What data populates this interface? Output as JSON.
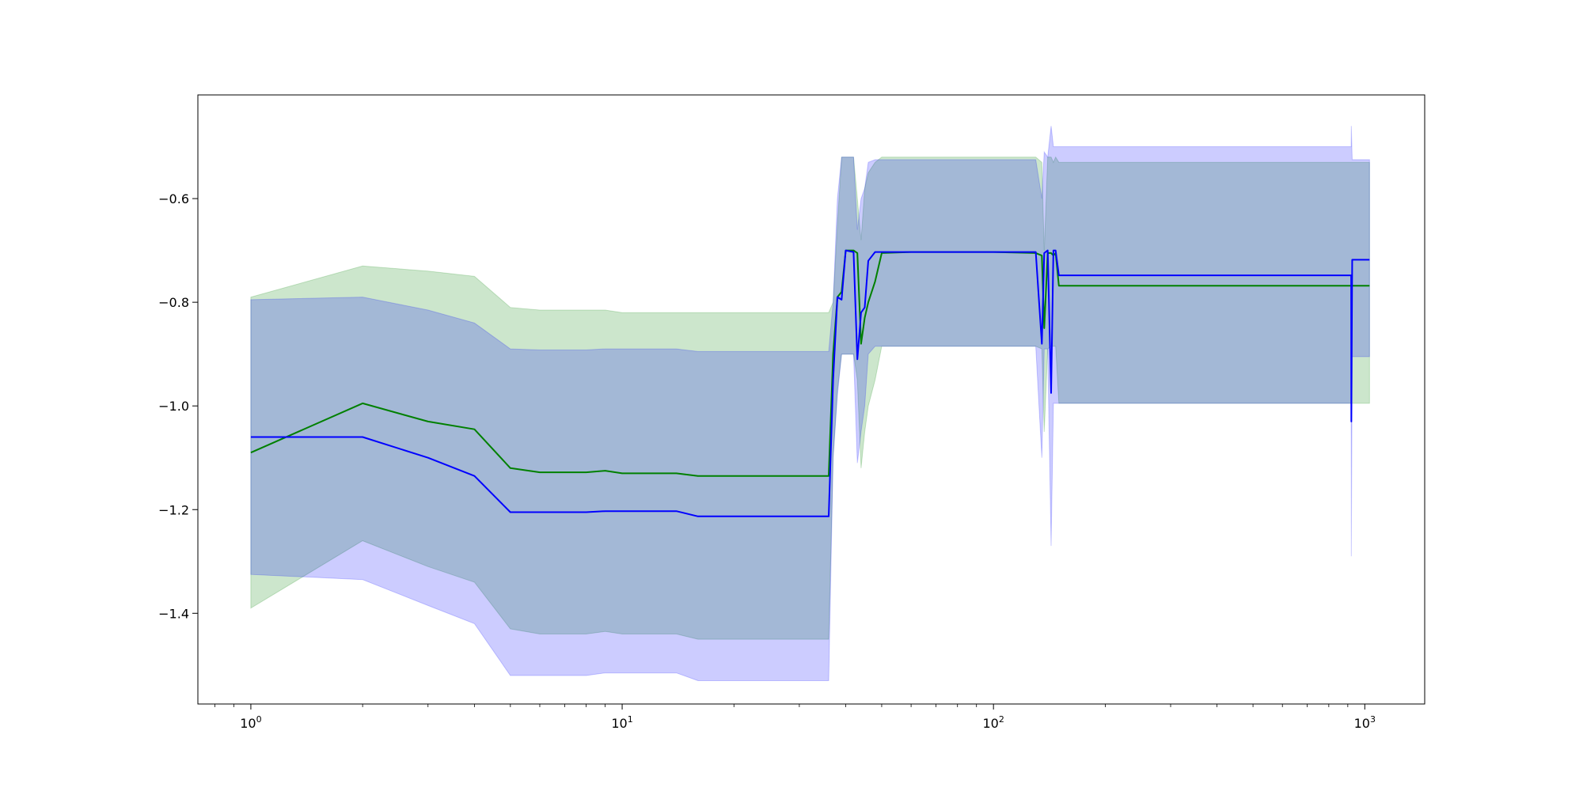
{
  "chart_data": {
    "type": "line",
    "xscale": "log",
    "xlim": [
      0.72,
      1450
    ],
    "ylim": [
      -1.575,
      -0.4
    ],
    "title": "",
    "xlabel": "",
    "ylabel": "",
    "grid": false,
    "x_ticks": [
      {
        "value": 1,
        "base": "10",
        "exp": "0"
      },
      {
        "value": 10,
        "base": "10",
        "exp": "1"
      },
      {
        "value": 100,
        "base": "10",
        "exp": "2"
      },
      {
        "value": 1000,
        "base": "10",
        "exp": "3"
      }
    ],
    "y_ticks": [
      {
        "value": -0.6,
        "label": "−0.6"
      },
      {
        "value": -0.8,
        "label": "−0.8"
      },
      {
        "value": -1.0,
        "label": "−1.0"
      },
      {
        "value": -1.2,
        "label": "−1.2"
      },
      {
        "value": -1.4,
        "label": "−1.4"
      }
    ],
    "series": [
      {
        "color": "#008000",
        "band_fill": "#008000",
        "band_opacity": 0.2,
        "x": [
          1,
          2,
          3,
          4,
          5,
          6,
          8,
          9,
          10,
          14,
          16,
          20,
          30,
          36,
          37,
          38,
          39,
          40,
          42,
          43,
          44,
          45,
          46,
          48,
          50,
          60,
          80,
          100,
          130,
          135,
          137,
          140,
          143,
          145,
          147,
          150,
          160,
          300,
          600,
          920,
          1030
        ],
        "y": [
          -1.09,
          -0.995,
          -1.03,
          -1.045,
          -1.12,
          -1.128,
          -1.128,
          -1.125,
          -1.13,
          -1.13,
          -1.135,
          -1.135,
          -1.135,
          -1.135,
          -0.9,
          -0.79,
          -0.78,
          -0.7,
          -0.7,
          -0.705,
          -0.88,
          -0.83,
          -0.8,
          -0.76,
          -0.705,
          -0.703,
          -0.703,
          -0.703,
          -0.705,
          -0.71,
          -0.85,
          -0.705,
          -0.705,
          -0.71,
          -0.705,
          -0.768,
          -0.768,
          -0.768,
          -0.768,
          -0.768,
          -0.768
        ],
        "upper": [
          -0.79,
          -0.73,
          -0.74,
          -0.75,
          -0.81,
          -0.815,
          -0.815,
          -0.815,
          -0.82,
          -0.82,
          -0.82,
          -0.82,
          -0.82,
          -0.82,
          -0.8,
          -0.65,
          -0.52,
          -0.52,
          -0.52,
          -0.6,
          -0.68,
          -0.58,
          -0.55,
          -0.53,
          -0.52,
          -0.52,
          -0.52,
          -0.52,
          -0.52,
          -0.53,
          -0.7,
          -0.52,
          -0.52,
          -0.53,
          -0.52,
          -0.53,
          -0.53,
          -0.53,
          -0.53,
          -0.53,
          -0.53
        ],
        "lower": [
          -1.39,
          -1.26,
          -1.31,
          -1.34,
          -1.43,
          -1.44,
          -1.44,
          -1.435,
          -1.44,
          -1.44,
          -1.45,
          -1.45,
          -1.45,
          -1.45,
          -1.1,
          -0.97,
          -0.9,
          -0.9,
          -0.9,
          -0.95,
          -1.12,
          -1.05,
          -1.0,
          -0.95,
          -0.885,
          -0.885,
          -0.885,
          -0.885,
          -0.885,
          -0.89,
          -1.05,
          -0.89,
          -0.885,
          -0.885,
          -0.885,
          -0.995,
          -0.995,
          -0.995,
          -0.995,
          -0.995,
          -0.995
        ]
      },
      {
        "color": "#0000ff",
        "band_fill": "#0000ff",
        "band_opacity": 0.2,
        "x": [
          1,
          2,
          3,
          4,
          5,
          6,
          8,
          9,
          10,
          14,
          16,
          20,
          30,
          36,
          37,
          38,
          39,
          40,
          42,
          43,
          44,
          45,
          46,
          48,
          50,
          60,
          80,
          100,
          130,
          135,
          137,
          140,
          143,
          145,
          147,
          150,
          160,
          300,
          600,
          919,
          920,
          925,
          1030
        ],
        "y": [
          -1.06,
          -1.06,
          -1.1,
          -1.135,
          -1.205,
          -1.205,
          -1.205,
          -1.203,
          -1.203,
          -1.203,
          -1.213,
          -1.213,
          -1.213,
          -1.213,
          -0.95,
          -0.79,
          -0.795,
          -0.7,
          -0.703,
          -0.91,
          -0.82,
          -0.81,
          -0.72,
          -0.703,
          -0.703,
          -0.703,
          -0.703,
          -0.703,
          -0.703,
          -0.88,
          -0.705,
          -0.7,
          -0.975,
          -0.7,
          -0.7,
          -0.748,
          -0.748,
          -0.748,
          -0.748,
          -0.748,
          -1.03,
          -0.718,
          -0.718
        ],
        "upper": [
          -0.795,
          -0.79,
          -0.815,
          -0.84,
          -0.89,
          -0.892,
          -0.892,
          -0.89,
          -0.89,
          -0.89,
          -0.895,
          -0.895,
          -0.895,
          -0.895,
          -0.8,
          -0.6,
          -0.52,
          -0.52,
          -0.52,
          -0.66,
          -0.6,
          -0.58,
          -0.53,
          -0.525,
          -0.525,
          -0.525,
          -0.525,
          -0.525,
          -0.525,
          -0.6,
          -0.51,
          -0.52,
          -0.46,
          -0.5,
          -0.5,
          -0.5,
          -0.5,
          -0.5,
          -0.5,
          -0.5,
          -0.46,
          -0.525,
          -0.525
        ],
        "lower": [
          -1.325,
          -1.335,
          -1.385,
          -1.42,
          -1.52,
          -1.52,
          -1.52,
          -1.515,
          -1.515,
          -1.515,
          -1.53,
          -1.53,
          -1.53,
          -1.53,
          -1.1,
          -0.98,
          -0.9,
          -0.9,
          -0.9,
          -1.11,
          -1.05,
          -1.0,
          -0.9,
          -0.885,
          -0.885,
          -0.885,
          -0.885,
          -0.885,
          -0.885,
          -1.1,
          -0.89,
          -0.89,
          -1.27,
          -0.995,
          -0.995,
          -0.995,
          -0.995,
          -0.995,
          -0.995,
          -0.995,
          -1.29,
          -0.905,
          -0.905
        ]
      }
    ]
  }
}
